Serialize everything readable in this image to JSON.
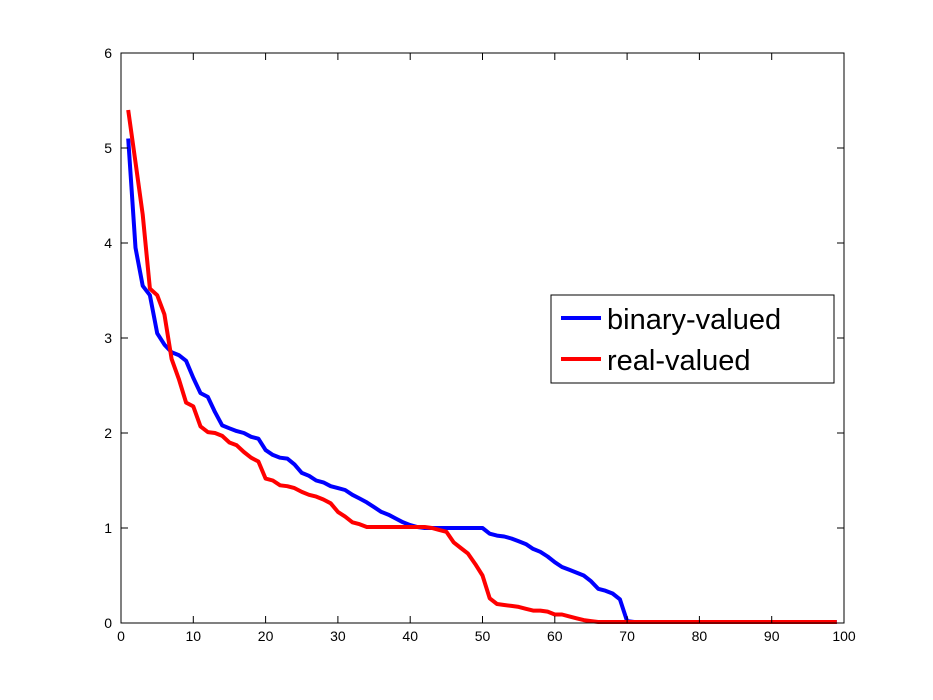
{
  "chart_data": {
    "type": "line",
    "title": "",
    "xlabel": "",
    "ylabel": "",
    "xlim": [
      0,
      100
    ],
    "ylim": [
      0,
      6
    ],
    "xticks": [
      0,
      10,
      20,
      30,
      40,
      50,
      60,
      70,
      80,
      90,
      100
    ],
    "yticks": [
      0,
      1,
      2,
      3,
      4,
      5,
      6
    ],
    "grid": false,
    "legend_position": "center-right",
    "series": [
      {
        "name": "binary-valued",
        "color": "#0000ff",
        "x": [
          1,
          2,
          3,
          4,
          5,
          6,
          7,
          8,
          9,
          10,
          11,
          12,
          13,
          14,
          15,
          16,
          17,
          18,
          19,
          20,
          21,
          22,
          23,
          24,
          25,
          26,
          27,
          28,
          29,
          30,
          31,
          32,
          33,
          34,
          35,
          36,
          37,
          38,
          39,
          40,
          41,
          42,
          43,
          44,
          45,
          46,
          47,
          48,
          49,
          50,
          51,
          52,
          53,
          54,
          55,
          56,
          57,
          58,
          59,
          60,
          61,
          62,
          63,
          64,
          65,
          66,
          67,
          68,
          69,
          70,
          71,
          72,
          73,
          74,
          75,
          76,
          77,
          78,
          79,
          80,
          81,
          82,
          83,
          84,
          85,
          86,
          87,
          88,
          89,
          90,
          91,
          92,
          93,
          94,
          95,
          96,
          97,
          98,
          99
        ],
        "y": [
          5.1,
          3.95,
          3.55,
          3.45,
          3.05,
          2.93,
          2.85,
          2.82,
          2.76,
          2.58,
          2.42,
          2.38,
          2.22,
          2.08,
          2.05,
          2.02,
          2.0,
          1.96,
          1.94,
          1.82,
          1.77,
          1.74,
          1.73,
          1.67,
          1.58,
          1.55,
          1.5,
          1.48,
          1.44,
          1.42,
          1.4,
          1.35,
          1.31,
          1.27,
          1.22,
          1.17,
          1.14,
          1.1,
          1.06,
          1.03,
          1.01,
          1.0,
          1.0,
          1.0,
          1.0,
          1.0,
          1.0,
          1.0,
          1.0,
          1.0,
          0.94,
          0.92,
          0.91,
          0.89,
          0.86,
          0.83,
          0.78,
          0.75,
          0.7,
          0.64,
          0.59,
          0.56,
          0.53,
          0.5,
          0.44,
          0.36,
          0.34,
          0.31,
          0.25,
          0.02,
          0.01,
          0.01,
          0.01,
          0.01,
          0.01,
          0.01,
          0.01,
          0.01,
          0.01,
          0.01,
          0.01,
          0.01,
          0.01,
          0.01,
          0.01,
          0.01,
          0.01,
          0.01,
          0.01,
          0.01,
          0.01,
          0.01,
          0.01,
          0.01,
          0.01,
          0.01,
          0.01,
          0.01,
          0.01
        ]
      },
      {
        "name": "real-valued",
        "color": "#ff0000",
        "x": [
          1,
          2,
          3,
          4,
          5,
          6,
          7,
          8,
          9,
          10,
          11,
          12,
          13,
          14,
          15,
          16,
          17,
          18,
          19,
          20,
          21,
          22,
          23,
          24,
          25,
          26,
          27,
          28,
          29,
          30,
          31,
          32,
          33,
          34,
          35,
          36,
          37,
          38,
          39,
          40,
          41,
          42,
          43,
          44,
          45,
          46,
          47,
          48,
          49,
          50,
          51,
          52,
          53,
          54,
          55,
          56,
          57,
          58,
          59,
          60,
          61,
          62,
          63,
          64,
          65,
          66,
          67,
          68,
          69,
          70,
          71,
          72,
          73,
          74,
          75,
          76,
          77,
          78,
          79,
          80,
          81,
          82,
          83,
          84,
          85,
          86,
          87,
          88,
          89,
          90,
          91,
          92,
          93,
          94,
          95,
          96,
          97,
          98,
          99
        ],
        "y": [
          5.4,
          4.85,
          4.3,
          3.52,
          3.45,
          3.25,
          2.78,
          2.57,
          2.32,
          2.28,
          2.07,
          2.01,
          2.0,
          1.97,
          1.9,
          1.87,
          1.8,
          1.74,
          1.7,
          1.52,
          1.5,
          1.45,
          1.44,
          1.42,
          1.38,
          1.35,
          1.33,
          1.3,
          1.26,
          1.17,
          1.12,
          1.06,
          1.04,
          1.01,
          1.01,
          1.01,
          1.01,
          1.01,
          1.01,
          1.01,
          1.01,
          1.01,
          1.0,
          0.98,
          0.96,
          0.85,
          0.79,
          0.73,
          0.62,
          0.5,
          0.26,
          0.2,
          0.19,
          0.18,
          0.17,
          0.15,
          0.13,
          0.13,
          0.12,
          0.09,
          0.09,
          0.07,
          0.05,
          0.03,
          0.02,
          0.01,
          0.01,
          0.01,
          0.01,
          0.01,
          0.01,
          0.01,
          0.01,
          0.01,
          0.01,
          0.01,
          0.01,
          0.01,
          0.01,
          0.01,
          0.01,
          0.01,
          0.01,
          0.01,
          0.01,
          0.01,
          0.01,
          0.01,
          0.01,
          0.01,
          0.01,
          0.01,
          0.01,
          0.01,
          0.01,
          0.01,
          0.01,
          0.01,
          0.01
        ]
      }
    ]
  }
}
